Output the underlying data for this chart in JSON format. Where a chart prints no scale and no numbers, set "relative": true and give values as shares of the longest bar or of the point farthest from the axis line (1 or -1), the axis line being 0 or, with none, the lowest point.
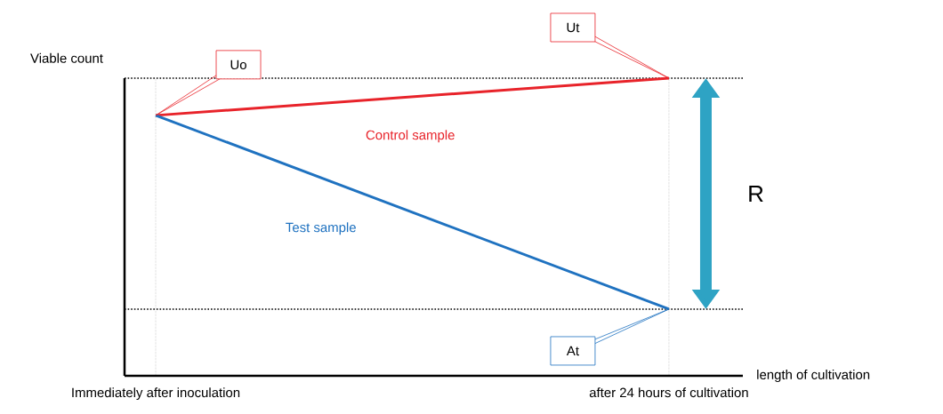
{
  "chart_data": {
    "type": "line",
    "relative": true,
    "xlabel": "length of cultivation",
    "ylabel": "Viable count",
    "categories": [
      "Immediately after inoculation",
      "after 24 hours of cultivation"
    ],
    "series": [
      {
        "name": "Control sample",
        "color": "#e8232a",
        "values": [
          0.875,
          1
        ]
      },
      {
        "name": "Test sample",
        "color": "#1f72c0",
        "values": [
          0.875,
          0.224
        ]
      }
    ],
    "annotations": [
      "Uo",
      "Ut",
      "At",
      "R"
    ],
    "ref_lines": [
      {
        "axis": "y",
        "value": 1,
        "color": "#000000",
        "line_style": "dotted"
      },
      {
        "axis": "y",
        "value": 0.224,
        "color": "#000000",
        "line_style": "dotted"
      }
    ],
    "grid": "x",
    "legend": false,
    "marker": "none",
    "line_style": "solid"
  }
}
